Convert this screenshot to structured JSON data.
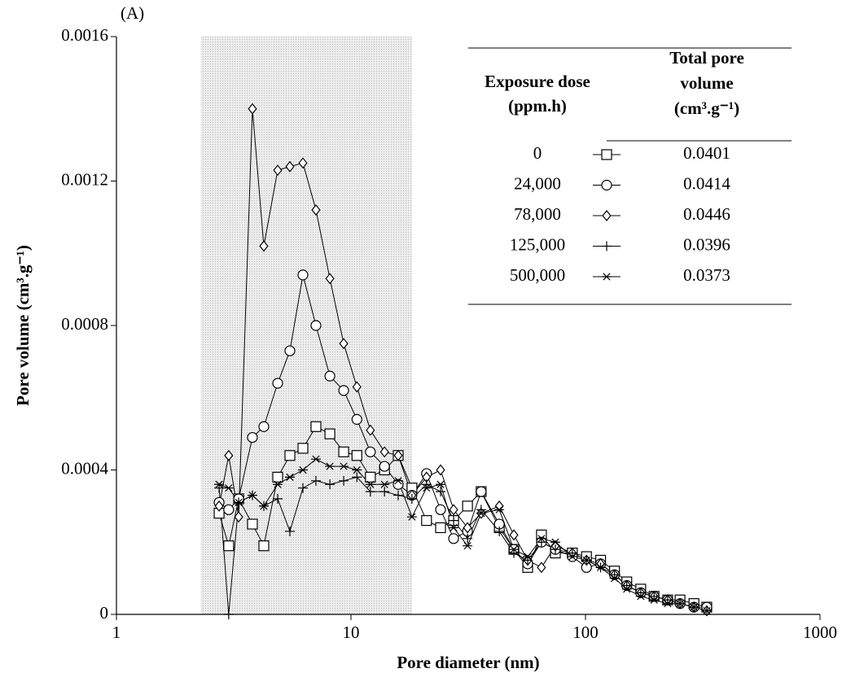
{
  "chart_data": {
    "type": "line",
    "panel_label": "(A)",
    "xlabel": "Pore diameter (nm)",
    "ylabel": "Pore volume (cm³.g⁻¹)",
    "xscale": "log",
    "xlim": [
      1,
      1000
    ],
    "xticks": [
      1,
      10,
      100,
      1000
    ],
    "ylim": [
      0,
      0.0016
    ],
    "yticks": [
      0,
      0.0004,
      0.0008,
      0.0012,
      0.0016
    ],
    "shaded_region": [
      2.3,
      18.1
    ],
    "shaded_color": "#e2e2e2",
    "legend_position": "upper right",
    "legend_headers": [
      [
        "Exposure dose",
        "(ppm.h)"
      ],
      [
        "Total pore",
        "volume",
        "(cm³.g⁻¹)"
      ]
    ],
    "x": [
      2.74,
      3.01,
      3.32,
      3.8,
      4.25,
      4.87,
      5.49,
      6.24,
      7.09,
      8.13,
      9.31,
      10.6,
      12.1,
      13.9,
      15.9,
      18.2,
      21.0,
      24.1,
      27.4,
      31.4,
      35.9,
      42.9,
      49.5,
      56.7,
      64.9,
      74.4,
      87.9,
      101,
      116,
      133,
      150,
      172,
      196,
      224,
      253,
      290,
      329
    ],
    "series": [
      {
        "name": "0",
        "total_pore_volume": 0.0401,
        "marker": "square",
        "color": "#000000",
        "values": [
          0.00028,
          0.00019,
          0.00032,
          0.00025,
          0.00019,
          0.00038,
          0.00044,
          0.00046,
          0.00052,
          0.0005,
          0.00045,
          0.00044,
          0.00038,
          0.0004,
          0.00044,
          0.00035,
          0.00026,
          0.00024,
          0.00026,
          0.0003,
          0.00034,
          0.00024,
          0.00018,
          0.00013,
          0.00022,
          0.00017,
          0.00017,
          0.00016,
          0.00015,
          0.00012,
          9e-05,
          7e-05,
          5e-05,
          4e-05,
          4e-05,
          3e-05,
          2e-05
        ]
      },
      {
        "name": "24,000",
        "total_pore_volume": 0.0414,
        "marker": "circle",
        "color": "#000000",
        "values": [
          0.00031,
          0.00029,
          0.00032,
          0.00049,
          0.00052,
          0.00064,
          0.00073,
          0.00094,
          0.0008,
          0.00066,
          0.00062,
          0.00054,
          0.00045,
          0.00041,
          0.00036,
          0.00033,
          0.00039,
          0.00029,
          0.00021,
          0.00023,
          0.00034,
          0.00025,
          0.00018,
          0.00014,
          0.0002,
          0.00018,
          0.00016,
          0.00013,
          0.00014,
          0.00011,
          8e-05,
          6e-05,
          5e-05,
          4e-05,
          3e-05,
          2e-05,
          2e-05
        ]
      },
      {
        "name": "78,000",
        "total_pore_volume": 0.0446,
        "marker": "diamond",
        "color": "#000000",
        "values": [
          0.0003,
          0.00044,
          0.00027,
          0.0014,
          0.00102,
          0.00123,
          0.00124,
          0.00125,
          0.00112,
          0.00093,
          0.00075,
          0.00063,
          0.00051,
          0.00045,
          0.00044,
          0.00033,
          0.00038,
          0.0004,
          0.00029,
          0.00024,
          0.00028,
          0.0003,
          0.00022,
          0.00015,
          0.00013,
          0.00019,
          0.00017,
          0.00015,
          0.00014,
          0.00011,
          8e-05,
          6e-05,
          5e-05,
          4e-05,
          3e-05,
          2e-05,
          1e-05
        ]
      },
      {
        "name": "125,000",
        "total_pore_volume": 0.0396,
        "marker": "plus",
        "color": "#000000",
        "values": [
          0.00035,
          0.0,
          0.00031,
          0.00033,
          0.0003,
          0.00032,
          0.00023,
          0.00035,
          0.00037,
          0.00036,
          0.00037,
          0.00038,
          0.00034,
          0.00034,
          0.00033,
          0.00032,
          0.00036,
          0.00034,
          0.00026,
          0.00021,
          0.00029,
          0.00023,
          0.00017,
          0.00015,
          0.0002,
          0.00018,
          0.00017,
          0.00015,
          0.00013,
          0.00011,
          8e-05,
          6e-05,
          5e-05,
          4e-05,
          3e-05,
          2e-05,
          1e-05
        ]
      },
      {
        "name": "500,000",
        "total_pore_volume": 0.0373,
        "marker": "star",
        "color": "#000000",
        "values": [
          0.00036,
          0.00035,
          0.00031,
          0.00033,
          0.0003,
          0.00036,
          0.00038,
          0.0004,
          0.00043,
          0.00041,
          0.00041,
          0.0004,
          0.00036,
          0.00036,
          0.00037,
          0.00027,
          0.00035,
          0.00036,
          0.00024,
          0.00019,
          0.00028,
          0.00029,
          0.00018,
          0.00016,
          0.00021,
          0.0002,
          0.00016,
          0.00015,
          0.00013,
          0.0001,
          7e-05,
          5e-05,
          4e-05,
          3e-05,
          3e-05,
          2e-05,
          1e-05
        ]
      }
    ]
  }
}
